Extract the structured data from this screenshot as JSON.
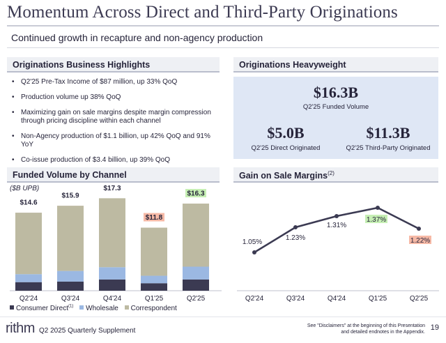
{
  "title": "Momentum Across Direct and Third-Party Originations",
  "subtitle": "Continued growth in recapture and non-agency production",
  "highlights": {
    "heading": "Originations Business Highlights",
    "bullets": [
      "Q2'25 Pre-Tax Income of $87 million, up 33% QoQ",
      "Production volume up 38% QoQ",
      "Maximizing gain on sale margins despite margin compression through pricing discipline within each channel",
      "Non-Agency production of $1.1 billion, up 42% QoQ and 91% YoY",
      "Co-issue production of $3.4 billion, up 39% QoQ"
    ]
  },
  "heavyweight": {
    "heading": "Originations Heavyweight",
    "funded_value": "$16.3B",
    "funded_caption": "Q2'25 Funded Volume",
    "direct_value": "$5.0B",
    "direct_caption": "Q2'25 Direct Originated",
    "third_value": "$11.3B",
    "third_caption": "Q2'25 Third-Party Originated"
  },
  "funded_chart": {
    "heading": "Funded Volume by Channel",
    "unit_label": "($B UPB)",
    "legend": {
      "consumer": "Consumer Direct",
      "consumer_sup": "(1)",
      "wholesale": "Wholesale",
      "correspondent": "Correspondent"
    }
  },
  "gos_chart": {
    "heading": "Gain on Sale Margins",
    "heading_sup": "(2)"
  },
  "footer": {
    "logo": "rithm",
    "text": "Q2 2025 Quarterly Supplement",
    "disclaimer": "See \"Disclaimers\" at the beginning of this Presentation and detailed endnotes in the Appendix.",
    "page": "19"
  },
  "colors": {
    "consumer": "#3b3a52",
    "wholesale": "#9bb8e2",
    "correspondent": "#bdbaa2",
    "line": "#3b3a52",
    "highlight_green": "#c6efb4",
    "highlight_red": "#f6b9a6"
  },
  "chart_data": [
    {
      "type": "bar",
      "stacked": true,
      "title": "Funded Volume by Channel",
      "ylabel": "($B UPB)",
      "categories": [
        "Q2'24",
        "Q3'24",
        "Q4'24",
        "Q1'25",
        "Q2'25"
      ],
      "series": [
        {
          "name": "Consumer Direct",
          "values": [
            1.6,
            1.7,
            2.1,
            1.4,
            2.1
          ]
        },
        {
          "name": "Wholesale",
          "values": [
            1.5,
            2.0,
            2.3,
            1.4,
            2.4
          ]
        },
        {
          "name": "Correspondent",
          "values": [
            11.5,
            12.2,
            12.9,
            9.0,
            11.8
          ]
        }
      ],
      "totals": [
        14.6,
        15.9,
        17.3,
        11.8,
        16.3
      ],
      "total_labels": [
        "$14.6",
        "$15.9",
        "$17.3",
        "$11.8",
        "$16.3"
      ],
      "total_highlight": [
        "",
        "",
        "",
        "red",
        "green"
      ],
      "ylim": [
        0,
        18
      ]
    },
    {
      "type": "line",
      "title": "Gain on Sale Margins",
      "categories": [
        "Q2'24",
        "Q3'24",
        "Q4'24",
        "Q1'25",
        "Q2'25"
      ],
      "values": [
        1.05,
        1.23,
        1.31,
        1.37,
        1.22
      ],
      "labels": [
        "1.05%",
        "1.23%",
        "1.31%",
        "1.37%",
        "1.22%"
      ],
      "label_highlight": [
        "",
        "",
        "",
        "green",
        "red"
      ],
      "ylim": [
        0.85,
        1.45
      ]
    }
  ]
}
